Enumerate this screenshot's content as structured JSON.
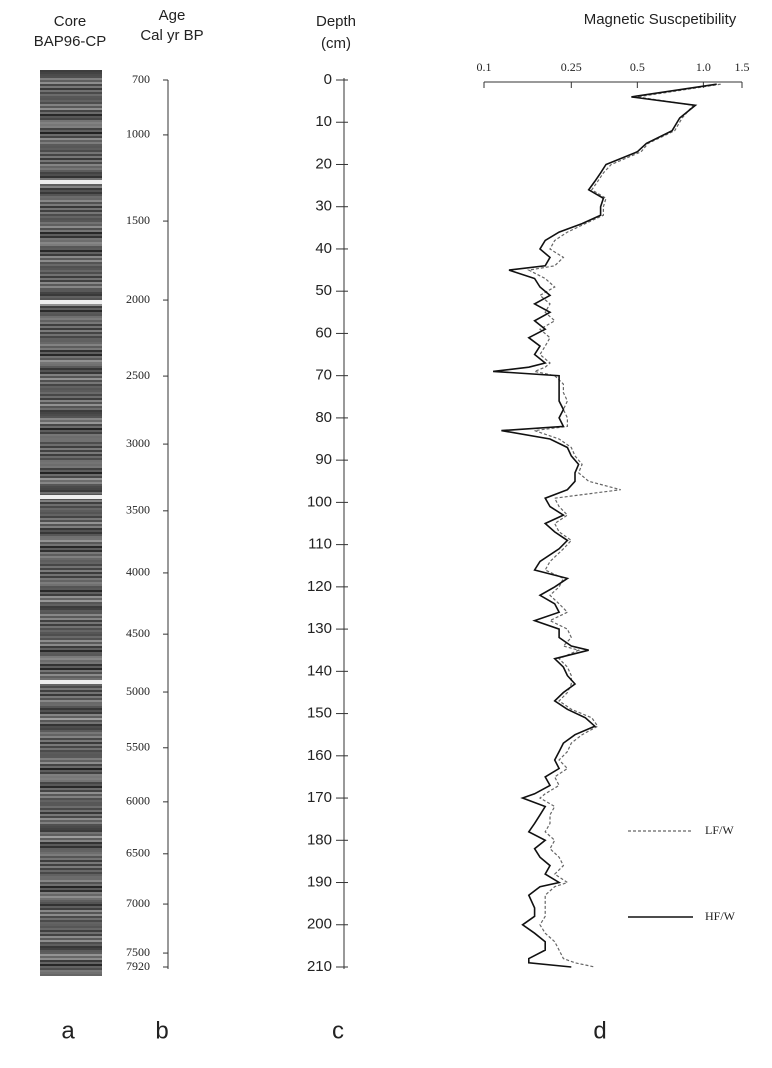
{
  "core": {
    "title": [
      "Core",
      "BAP96-CP"
    ]
  },
  "panel_labels": [
    "a",
    "b",
    "c",
    "d"
  ],
  "chart_data": [
    {
      "type": "age-axis",
      "title": [
        "Age",
        "Cal yr BP"
      ],
      "ticks": [
        700,
        1000,
        1500,
        2000,
        2500,
        3000,
        3500,
        4000,
        4500,
        5000,
        5500,
        6000,
        6500,
        7000,
        7500,
        7920
      ],
      "tick_depths": [
        0,
        13,
        33.4,
        52.1,
        70.1,
        86.2,
        102,
        116.7,
        131.2,
        144.9,
        158.1,
        170.9,
        183.2,
        195.1,
        206.7,
        210
      ]
    },
    {
      "type": "depth-axis",
      "title": [
        "Depth",
        "(cm)"
      ],
      "ylim": [
        0,
        210
      ],
      "yticks": [
        0,
        10,
        20,
        30,
        40,
        50,
        60,
        70,
        80,
        90,
        100,
        110,
        120,
        130,
        140,
        150,
        160,
        170,
        180,
        190,
        200,
        210
      ]
    },
    {
      "type": "line",
      "title": "Magnetic Suscpetibility",
      "x_log": true,
      "xlim": [
        0.1,
        1.5
      ],
      "ylim": [
        0,
        210
      ],
      "xticks": [
        0.1,
        0.25,
        0.5,
        {
          "value": 1,
          "label": "1.0"
        },
        1.5
      ],
      "y": [
        1,
        4,
        6,
        9,
        12,
        15,
        17,
        20,
        22,
        24,
        26,
        28,
        30,
        32,
        34,
        36,
        38,
        40,
        42,
        44,
        45,
        47,
        49,
        51,
        53,
        55,
        57,
        59,
        61,
        63,
        65,
        67,
        68,
        69,
        70,
        72,
        74,
        76,
        78,
        80,
        82,
        83,
        85,
        87,
        89,
        91,
        93,
        95,
        97,
        99,
        101,
        103,
        105,
        107,
        109,
        111,
        114,
        116,
        118,
        120,
        122,
        124,
        126,
        128,
        130,
        132,
        134,
        135,
        137,
        139,
        141,
        143,
        145,
        147,
        149,
        151,
        153,
        155,
        157,
        159,
        161,
        163,
        165,
        167,
        169,
        170,
        172,
        174,
        176,
        178,
        180,
        182,
        184,
        186,
        188,
        190,
        191,
        193,
        196,
        198,
        200,
        202,
        204,
        206,
        208,
        209,
        210
      ],
      "series": [
        {
          "name": "LF/W",
          "color": "#666666",
          "dash": true,
          "values": [
            1.2,
            0.5,
            0.9,
            0.8,
            0.74,
            0.56,
            0.52,
            0.38,
            0.35,
            0.33,
            0.31,
            0.36,
            0.35,
            0.35,
            0.29,
            0.24,
            0.21,
            0.2,
            0.23,
            0.21,
            0.16,
            0.19,
            0.21,
            0.18,
            0.2,
            0.19,
            0.21,
            0.18,
            0.2,
            0.19,
            0.18,
            0.2,
            0.19,
            0.17,
            0.21,
            0.23,
            0.23,
            0.24,
            0.23,
            0.24,
            0.24,
            0.17,
            0.22,
            0.25,
            0.26,
            0.28,
            0.27,
            0.3,
            0.42,
            0.21,
            0.22,
            0.24,
            0.21,
            0.22,
            0.25,
            0.23,
            0.2,
            0.19,
            0.23,
            0.22,
            0.2,
            0.22,
            0.24,
            0.2,
            0.24,
            0.25,
            0.23,
            0.27,
            0.22,
            0.24,
            0.25,
            0.25,
            0.24,
            0.22,
            0.25,
            0.31,
            0.33,
            0.28,
            0.25,
            0.24,
            0.22,
            0.24,
            0.21,
            0.22,
            0.19,
            0.18,
            0.21,
            0.2,
            0.2,
            0.19,
            0.21,
            0.2,
            0.22,
            0.23,
            0.21,
            0.24,
            0.21,
            0.19,
            0.19,
            0.19,
            0.18,
            0.19,
            0.21,
            0.22,
            0.23,
            0.26,
            0.32
          ]
        },
        {
          "name": "HF/W",
          "color": "#111111",
          "dash": false,
          "values": [
            1.15,
            0.47,
            0.92,
            0.78,
            0.72,
            0.55,
            0.5,
            0.36,
            0.34,
            0.32,
            0.3,
            0.35,
            0.34,
            0.34,
            0.28,
            0.22,
            0.19,
            0.18,
            0.2,
            0.19,
            0.13,
            0.17,
            0.18,
            0.2,
            0.17,
            0.2,
            0.17,
            0.19,
            0.16,
            0.18,
            0.17,
            0.19,
            0.16,
            0.11,
            0.22,
            0.22,
            0.22,
            0.22,
            0.23,
            0.22,
            0.23,
            0.12,
            0.2,
            0.24,
            0.25,
            0.27,
            0.26,
            0.26,
            0.24,
            0.19,
            0.2,
            0.23,
            0.19,
            0.21,
            0.24,
            0.22,
            0.18,
            0.17,
            0.24,
            0.21,
            0.18,
            0.21,
            0.22,
            0.17,
            0.22,
            0.22,
            0.25,
            0.3,
            0.21,
            0.23,
            0.24,
            0.26,
            0.23,
            0.21,
            0.24,
            0.29,
            0.32,
            0.26,
            0.23,
            0.22,
            0.21,
            0.22,
            0.19,
            0.2,
            0.17,
            0.15,
            0.19,
            0.18,
            0.17,
            0.16,
            0.19,
            0.17,
            0.18,
            0.2,
            0.19,
            0.22,
            0.18,
            0.16,
            0.17,
            0.17,
            0.15,
            0.17,
            0.19,
            0.19,
            0.16,
            0.16,
            0.25
          ]
        }
      ]
    }
  ]
}
